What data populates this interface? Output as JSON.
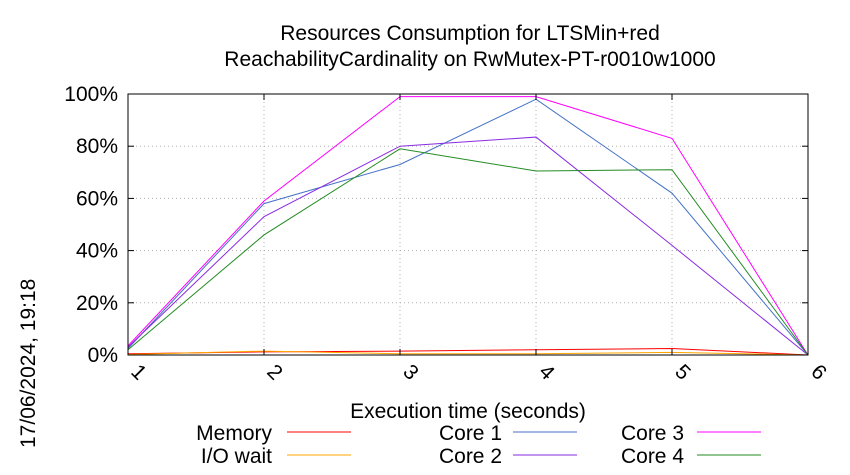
{
  "chart_data": {
    "type": "line",
    "title": "Resources Consumption for LTSMin+red",
    "subtitle": "ReachabilityCardinality on RwMutex-PT-r0010w1000",
    "xlabel": "Execution time (seconds)",
    "ylabel": "",
    "side_label": "17/06/2024, 19:18",
    "x": [
      1,
      2,
      3,
      4,
      5,
      6
    ],
    "x_tick_labels": [
      "1",
      "2",
      "3",
      "4",
      "5",
      "6"
    ],
    "y_tick_labels": [
      "0%",
      "20%",
      "40%",
      "60%",
      "80%",
      "100%"
    ],
    "y_ticks": [
      0,
      20,
      40,
      60,
      80,
      100
    ],
    "xlim": [
      1,
      6
    ],
    "ylim": [
      0,
      100
    ],
    "grid": true,
    "legend_position": "bottom",
    "series": [
      {
        "name": "Memory",
        "color": "#ff0000",
        "values": [
          0.5,
          1.2,
          1.5,
          2.0,
          2.5,
          0.0
        ]
      },
      {
        "name": "I/O wait",
        "color": "#ffa500",
        "values": [
          0.2,
          1.5,
          0.5,
          0.5,
          1.0,
          0.0
        ]
      },
      {
        "name": "Core 1",
        "color": "#4472c4",
        "values": [
          2.5,
          58.0,
          73.0,
          98.0,
          62.0,
          0.0
        ]
      },
      {
        "name": "Core 2",
        "color": "#8a2be2",
        "values": [
          3.0,
          53.0,
          80.0,
          83.5,
          42.0,
          0.0
        ]
      },
      {
        "name": "Core 3",
        "color": "#ff00ff",
        "values": [
          3.5,
          59.0,
          99.0,
          99.0,
          83.0,
          0.0
        ]
      },
      {
        "name": "Core 4",
        "color": "#228b22",
        "values": [
          2.0,
          46.0,
          79.0,
          70.5,
          71.0,
          0.0
        ]
      }
    ]
  }
}
